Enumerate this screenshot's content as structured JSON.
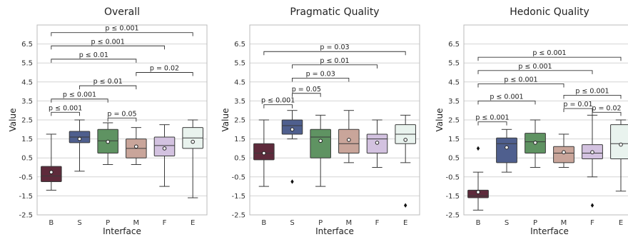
{
  "chart_data": [
    {
      "type": "box",
      "title": "Overall",
      "xlabel": "Interface",
      "ylabel": "Value",
      "ylim": [
        -2.5,
        7.5
      ],
      "yticks": [
        -2.5,
        -1.5,
        -0.5,
        0.5,
        1.5,
        2.5,
        3.5,
        4.5,
        5.5,
        6.5
      ],
      "grid": true,
      "categories": [
        "B",
        "S",
        "P",
        "M",
        "F",
        "E"
      ],
      "colors": [
        "#5e2a3b",
        "#4f5f8e",
        "#5f9362",
        "#c9a59a",
        "#d3c2e0",
        "#e9f3ee"
      ],
      "boxes": [
        {
          "whislo": -1.2,
          "q1": -0.75,
          "med": -0.45,
          "q3": 0.05,
          "whishi": 1.75,
          "mean": -0.25,
          "fliers": []
        },
        {
          "whislo": -0.2,
          "q1": 1.3,
          "med": 1.6,
          "q3": 1.9,
          "whishi": 2.5,
          "mean": 1.5,
          "fliers": []
        },
        {
          "whislo": 0.15,
          "q1": 0.75,
          "med": 1.4,
          "q3": 2.0,
          "whishi": 2.35,
          "mean": 1.35,
          "fliers": []
        },
        {
          "whislo": 0.15,
          "q1": 0.5,
          "med": 1.0,
          "q3": 1.5,
          "whishi": 2.1,
          "mean": 1.1,
          "fliers": []
        },
        {
          "whislo": -1.0,
          "q1": 0.6,
          "med": 1.15,
          "q3": 1.6,
          "whishi": 2.25,
          "mean": 1.0,
          "fliers": []
        },
        {
          "whislo": -1.6,
          "q1": 1.0,
          "med": 1.55,
          "q3": 2.1,
          "whishi": 2.5,
          "mean": 1.35,
          "fliers": []
        }
      ],
      "annotations": [
        {
          "from": 0,
          "to": 1,
          "y": 2.9,
          "text": "p ≤ 0.001"
        },
        {
          "from": 2,
          "to": 3,
          "y": 2.6,
          "text": "p = 0.05"
        },
        {
          "from": 0,
          "to": 2,
          "y": 3.6,
          "text": "p ≤ 0.001"
        },
        {
          "from": 1,
          "to": 3,
          "y": 4.3,
          "text": "p ≤ 0.01"
        },
        {
          "from": 3,
          "to": 5,
          "y": 5.0,
          "text": "p = 0.02"
        },
        {
          "from": 0,
          "to": 3,
          "y": 5.7,
          "text": "p ≤ 0.01"
        },
        {
          "from": 0,
          "to": 4,
          "y": 6.4,
          "text": "p ≤ 0.001"
        },
        {
          "from": 0,
          "to": 5,
          "y": 7.1,
          "text": "p ≤ 0.001"
        }
      ]
    },
    {
      "type": "box",
      "title": "Pragmatic Quality",
      "xlabel": "Interface",
      "ylabel": "Value",
      "ylim": [
        -2.5,
        7.5
      ],
      "yticks": [
        -2.5,
        -1.5,
        -0.5,
        0.5,
        1.5,
        2.5,
        3.5,
        4.5,
        5.5,
        6.5
      ],
      "grid": true,
      "categories": [
        "B",
        "S",
        "P",
        "M",
        "F",
        "E"
      ],
      "colors": [
        "#5e2a3b",
        "#4f5f8e",
        "#5f9362",
        "#c9a59a",
        "#d3c2e0",
        "#e9f3ee"
      ],
      "boxes": [
        {
          "whislo": -1.0,
          "q1": 0.4,
          "med": 0.75,
          "q3": 1.25,
          "whishi": 2.5,
          "mean": 0.75,
          "fliers": []
        },
        {
          "whislo": 1.5,
          "q1": 1.75,
          "med": 2.2,
          "q3": 2.5,
          "whishi": 3.0,
          "mean": 2.0,
          "fliers": [
            -0.75
          ]
        },
        {
          "whislo": -1.0,
          "q1": 0.5,
          "med": 1.6,
          "q3": 2.0,
          "whishi": 2.75,
          "mean": 1.4,
          "fliers": []
        },
        {
          "whislo": 0.25,
          "q1": 0.75,
          "med": 1.25,
          "q3": 2.0,
          "whishi": 3.0,
          "mean": 1.45,
          "fliers": []
        },
        {
          "whislo": 0.0,
          "q1": 0.75,
          "med": 1.5,
          "q3": 1.75,
          "whishi": 2.5,
          "mean": 1.3,
          "fliers": []
        },
        {
          "whislo": 0.25,
          "q1": 1.25,
          "med": 1.75,
          "q3": 2.25,
          "whishi": 2.75,
          "mean": 1.45,
          "fliers": [
            -2.0
          ]
        }
      ],
      "annotations": [
        {
          "from": 0,
          "to": 1,
          "y": 3.3,
          "text": "p ≤ 0.001"
        },
        {
          "from": 1,
          "to": 2,
          "y": 3.9,
          "text": "p = 0.05"
        },
        {
          "from": 1,
          "to": 3,
          "y": 4.7,
          "text": "p = 0.03"
        },
        {
          "from": 1,
          "to": 4,
          "y": 5.4,
          "text": "p ≤ 0.01"
        },
        {
          "from": 0,
          "to": 5,
          "y": 6.1,
          "text": "p = 0.03"
        }
      ]
    },
    {
      "type": "box",
      "title": "Hedonic Quality",
      "xlabel": "Interface",
      "ylabel": "Value",
      "ylim": [
        -2.5,
        7.5
      ],
      "yticks": [
        -2.5,
        -1.5,
        -0.5,
        0.5,
        1.5,
        2.5,
        3.5,
        4.5,
        5.5,
        6.5
      ],
      "grid": true,
      "categories": [
        "B",
        "S",
        "P",
        "M",
        "F",
        "E"
      ],
      "colors": [
        "#5e2a3b",
        "#4f5f8e",
        "#5f9362",
        "#c9a59a",
        "#d3c2e0",
        "#e9f3ee"
      ],
      "boxes": [
        {
          "whislo": -2.25,
          "q1": -1.6,
          "med": -1.5,
          "q3": -1.2,
          "whishi": -0.25,
          "mean": -1.3,
          "fliers": [
            1.0
          ]
        },
        {
          "whislo": -0.25,
          "q1": 0.25,
          "med": 1.25,
          "q3": 1.55,
          "whishi": 2.0,
          "mean": 1.05,
          "fliers": []
        },
        {
          "whislo": 0.0,
          "q1": 0.75,
          "med": 1.35,
          "q3": 1.8,
          "whishi": 2.5,
          "mean": 1.3,
          "fliers": []
        },
        {
          "whislo": 0.0,
          "q1": 0.25,
          "med": 0.75,
          "q3": 1.1,
          "whishi": 1.75,
          "mean": 0.8,
          "fliers": []
        },
        {
          "whislo": -0.5,
          "q1": 0.45,
          "med": 0.75,
          "q3": 1.2,
          "whishi": 2.75,
          "mean": 0.8,
          "fliers": [
            -2.0
          ]
        },
        {
          "whislo": -1.25,
          "q1": 0.45,
          "med": 1.25,
          "q3": 2.25,
          "whishi": 2.5,
          "mean": 1.2,
          "fliers": []
        }
      ],
      "annotations": [
        {
          "from": 0,
          "to": 1,
          "y": 2.4,
          "text": "p ≤ 0.001"
        },
        {
          "from": 4,
          "to": 5,
          "y": 2.9,
          "text": "p = 0.02"
        },
        {
          "from": 3,
          "to": 4,
          "y": 3.1,
          "text": "p = 0.01"
        },
        {
          "from": 0,
          "to": 2,
          "y": 3.5,
          "text": "p ≤ 0.001"
        },
        {
          "from": 3,
          "to": 5,
          "y": 3.8,
          "text": "p ≤ 0.001"
        },
        {
          "from": 0,
          "to": 3,
          "y": 4.4,
          "text": "p ≤ 0.001"
        },
        {
          "from": 0,
          "to": 4,
          "y": 5.1,
          "text": "p ≤ 0.001"
        },
        {
          "from": 0,
          "to": 5,
          "y": 5.8,
          "text": "p ≤ 0.001"
        }
      ]
    }
  ]
}
